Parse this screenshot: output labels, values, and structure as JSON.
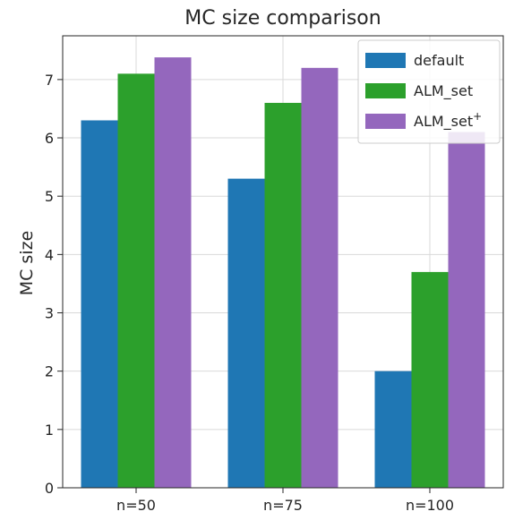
{
  "chart_data": {
    "type": "bar",
    "title": "MC size comparison",
    "xlabel": "",
    "ylabel": "MC size",
    "ylim": [
      0,
      7.75
    ],
    "yticks": [
      "0",
      "1",
      "2",
      "3",
      "4",
      "5",
      "6",
      "7"
    ],
    "categories": [
      "n=50",
      "n=75",
      "n=100"
    ],
    "grid": true,
    "legend_position": "top-right",
    "series": [
      {
        "name": "default",
        "color": "#1f77b4",
        "values": [
          6.3,
          5.3,
          2.0
        ]
      },
      {
        "name": "ALM_set",
        "color": "#2ca02c",
        "values": [
          7.1,
          6.6,
          3.7
        ]
      },
      {
        "name": "ALM_set",
        "name_superscript": "+",
        "color": "#9467bd",
        "values": [
          7.38,
          7.2,
          6.1
        ]
      }
    ]
  }
}
